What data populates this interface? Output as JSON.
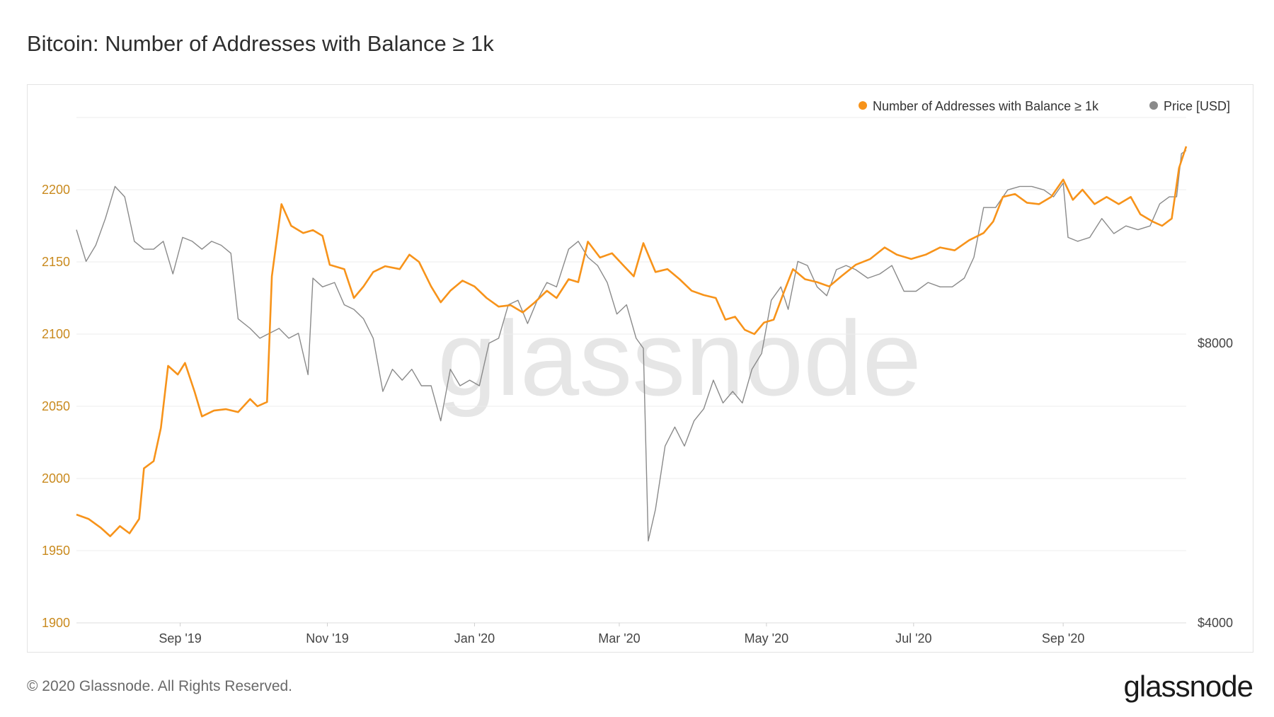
{
  "title": "Bitcoin: Number of Addresses with Balance ≥ 1k",
  "footer": "© 2020 Glassnode. All Rights Reserved.",
  "brand": "glassnode",
  "watermark": "glassnode",
  "colors": {
    "addresses": "#f7931a",
    "price": "#8a8a8a",
    "grid": "#ececec",
    "left_tick": "#c98a1e",
    "watermark": "#e6e6e6"
  },
  "chart_data": {
    "type": "line",
    "title": "Bitcoin: Number of Addresses with Balance ≥ 1k",
    "legend": {
      "placement": "top-right",
      "items": [
        "Number of Addresses with Balance ≥ 1k",
        "Price [USD]"
      ]
    },
    "grid": true,
    "x_range": [
      "2019-07-20",
      "2020-10-22"
    ],
    "x_ticks": [
      {
        "date": "2019-09-01",
        "label": "Sep '19"
      },
      {
        "date": "2019-11-01",
        "label": "Nov '19"
      },
      {
        "date": "2020-01-01",
        "label": "Jan '20"
      },
      {
        "date": "2020-03-01",
        "label": "Mar '20"
      },
      {
        "date": "2020-05-01",
        "label": "May '20"
      },
      {
        "date": "2020-07-01",
        "label": "Jul '20"
      },
      {
        "date": "2020-09-01",
        "label": "Sep '20"
      }
    ],
    "y_left": {
      "ylim": [
        1900,
        2250
      ],
      "ticks": [
        1900,
        1950,
        2000,
        2050,
        2100,
        2150,
        2200
      ]
    },
    "y_right": {
      "scale": "log",
      "ylim": [
        4000,
        14000
      ],
      "ticks": [
        4000,
        8000
      ],
      "tick_labels": [
        "$4000",
        "$8000"
      ]
    },
    "series": [
      {
        "name": "Number of Addresses with Balance ≥ 1k",
        "axis": "left",
        "points": [
          [
            "2019-07-20",
            1975
          ],
          [
            "2019-07-25",
            1972
          ],
          [
            "2019-07-30",
            1966
          ],
          [
            "2019-08-03",
            1960
          ],
          [
            "2019-08-07",
            1967
          ],
          [
            "2019-08-11",
            1962
          ],
          [
            "2019-08-15",
            1972
          ],
          [
            "2019-08-17",
            2007
          ],
          [
            "2019-08-21",
            2012
          ],
          [
            "2019-08-24",
            2035
          ],
          [
            "2019-08-27",
            2078
          ],
          [
            "2019-08-31",
            2072
          ],
          [
            "2019-09-03",
            2080
          ],
          [
            "2019-09-07",
            2060
          ],
          [
            "2019-09-10",
            2043
          ],
          [
            "2019-09-15",
            2047
          ],
          [
            "2019-09-20",
            2048
          ],
          [
            "2019-09-25",
            2046
          ],
          [
            "2019-09-30",
            2055
          ],
          [
            "2019-10-03",
            2050
          ],
          [
            "2019-10-07",
            2053
          ],
          [
            "2019-10-09",
            2140
          ],
          [
            "2019-10-13",
            2190
          ],
          [
            "2019-10-17",
            2175
          ],
          [
            "2019-10-22",
            2170
          ],
          [
            "2019-10-26",
            2172
          ],
          [
            "2019-10-30",
            2168
          ],
          [
            "2019-11-02",
            2148
          ],
          [
            "2019-11-08",
            2145
          ],
          [
            "2019-11-12",
            2125
          ],
          [
            "2019-11-16",
            2133
          ],
          [
            "2019-11-20",
            2143
          ],
          [
            "2019-11-25",
            2147
          ],
          [
            "2019-12-01",
            2145
          ],
          [
            "2019-12-05",
            2155
          ],
          [
            "2019-12-09",
            2150
          ],
          [
            "2019-12-14",
            2133
          ],
          [
            "2019-12-18",
            2122
          ],
          [
            "2019-12-22",
            2130
          ],
          [
            "2019-12-27",
            2137
          ],
          [
            "2020-01-01",
            2133
          ],
          [
            "2020-01-06",
            2125
          ],
          [
            "2020-01-11",
            2119
          ],
          [
            "2020-01-16",
            2120
          ],
          [
            "2020-01-21",
            2115
          ],
          [
            "2020-01-26",
            2122
          ],
          [
            "2020-01-31",
            2130
          ],
          [
            "2020-02-04",
            2125
          ],
          [
            "2020-02-09",
            2138
          ],
          [
            "2020-02-13",
            2136
          ],
          [
            "2020-02-17",
            2164
          ],
          [
            "2020-02-22",
            2153
          ],
          [
            "2020-02-27",
            2156
          ],
          [
            "2020-03-03",
            2147
          ],
          [
            "2020-03-07",
            2140
          ],
          [
            "2020-03-11",
            2163
          ],
          [
            "2020-03-16",
            2143
          ],
          [
            "2020-03-21",
            2145
          ],
          [
            "2020-03-26",
            2138
          ],
          [
            "2020-03-31",
            2130
          ],
          [
            "2020-04-05",
            2127
          ],
          [
            "2020-04-10",
            2125
          ],
          [
            "2020-04-14",
            2110
          ],
          [
            "2020-04-18",
            2112
          ],
          [
            "2020-04-22",
            2103
          ],
          [
            "2020-04-26",
            2100
          ],
          [
            "2020-04-30",
            2108
          ],
          [
            "2020-05-04",
            2110
          ],
          [
            "2020-05-08",
            2128
          ],
          [
            "2020-05-12",
            2145
          ],
          [
            "2020-05-17",
            2138
          ],
          [
            "2020-05-22",
            2136
          ],
          [
            "2020-05-27",
            2133
          ],
          [
            "2020-06-01",
            2140
          ],
          [
            "2020-06-07",
            2148
          ],
          [
            "2020-06-13",
            2152
          ],
          [
            "2020-06-19",
            2160
          ],
          [
            "2020-06-24",
            2155
          ],
          [
            "2020-06-30",
            2152
          ],
          [
            "2020-07-06",
            2155
          ],
          [
            "2020-07-12",
            2160
          ],
          [
            "2020-07-18",
            2158
          ],
          [
            "2020-07-24",
            2165
          ],
          [
            "2020-07-30",
            2170
          ],
          [
            "2020-08-03",
            2178
          ],
          [
            "2020-08-07",
            2195
          ],
          [
            "2020-08-12",
            2197
          ],
          [
            "2020-08-17",
            2191
          ],
          [
            "2020-08-22",
            2190
          ],
          [
            "2020-08-27",
            2195
          ],
          [
            "2020-09-01",
            2207
          ],
          [
            "2020-09-05",
            2193
          ],
          [
            "2020-09-09",
            2200
          ],
          [
            "2020-09-14",
            2190
          ],
          [
            "2020-09-19",
            2195
          ],
          [
            "2020-09-24",
            2190
          ],
          [
            "2020-09-29",
            2195
          ],
          [
            "2020-10-03",
            2183
          ],
          [
            "2020-10-08",
            2178
          ],
          [
            "2020-10-12",
            2175
          ],
          [
            "2020-10-16",
            2180
          ],
          [
            "2020-10-19",
            2215
          ],
          [
            "2020-10-22",
            2230
          ]
        ]
      },
      {
        "name": "Price [USD]",
        "axis": "right",
        "points": [
          [
            "2019-07-20",
            10600
          ],
          [
            "2019-07-24",
            9800
          ],
          [
            "2019-07-28",
            10200
          ],
          [
            "2019-08-01",
            10900
          ],
          [
            "2019-08-05",
            11800
          ],
          [
            "2019-08-09",
            11500
          ],
          [
            "2019-08-13",
            10300
          ],
          [
            "2019-08-17",
            10100
          ],
          [
            "2019-08-21",
            10100
          ],
          [
            "2019-08-25",
            10300
          ],
          [
            "2019-08-29",
            9500
          ],
          [
            "2019-09-02",
            10400
          ],
          [
            "2019-09-06",
            10300
          ],
          [
            "2019-09-10",
            10100
          ],
          [
            "2019-09-14",
            10300
          ],
          [
            "2019-09-18",
            10200
          ],
          [
            "2019-09-22",
            10000
          ],
          [
            "2019-09-25",
            8500
          ],
          [
            "2019-09-30",
            8300
          ],
          [
            "2019-10-04",
            8100
          ],
          [
            "2019-10-08",
            8200
          ],
          [
            "2019-10-12",
            8300
          ],
          [
            "2019-10-16",
            8100
          ],
          [
            "2019-10-20",
            8200
          ],
          [
            "2019-10-24",
            7400
          ],
          [
            "2019-10-26",
            9400
          ],
          [
            "2019-10-30",
            9200
          ],
          [
            "2019-11-04",
            9300
          ],
          [
            "2019-11-08",
            8800
          ],
          [
            "2019-11-12",
            8700
          ],
          [
            "2019-11-16",
            8500
          ],
          [
            "2019-11-20",
            8100
          ],
          [
            "2019-11-24",
            7100
          ],
          [
            "2019-11-28",
            7500
          ],
          [
            "2019-12-02",
            7300
          ],
          [
            "2019-12-06",
            7500
          ],
          [
            "2019-12-10",
            7200
          ],
          [
            "2019-12-14",
            7200
          ],
          [
            "2019-12-18",
            6600
          ],
          [
            "2019-12-22",
            7500
          ],
          [
            "2019-12-26",
            7200
          ],
          [
            "2019-12-30",
            7300
          ],
          [
            "2020-01-03",
            7200
          ],
          [
            "2020-01-07",
            8000
          ],
          [
            "2020-01-11",
            8100
          ],
          [
            "2020-01-15",
            8800
          ],
          [
            "2020-01-19",
            8900
          ],
          [
            "2020-01-23",
            8400
          ],
          [
            "2020-01-27",
            8900
          ],
          [
            "2020-01-31",
            9300
          ],
          [
            "2020-02-04",
            9200
          ],
          [
            "2020-02-09",
            10100
          ],
          [
            "2020-02-13",
            10300
          ],
          [
            "2020-02-17",
            9900
          ],
          [
            "2020-02-21",
            9700
          ],
          [
            "2020-02-25",
            9300
          ],
          [
            "2020-02-29",
            8600
          ],
          [
            "2020-03-04",
            8800
          ],
          [
            "2020-03-08",
            8100
          ],
          [
            "2020-03-11",
            7900
          ],
          [
            "2020-03-13",
            4900
          ],
          [
            "2020-03-16",
            5300
          ],
          [
            "2020-03-20",
            6200
          ],
          [
            "2020-03-24",
            6500
          ],
          [
            "2020-03-28",
            6200
          ],
          [
            "2020-04-01",
            6600
          ],
          [
            "2020-04-05",
            6800
          ],
          [
            "2020-04-09",
            7300
          ],
          [
            "2020-04-13",
            6900
          ],
          [
            "2020-04-17",
            7100
          ],
          [
            "2020-04-21",
            6900
          ],
          [
            "2020-04-25",
            7500
          ],
          [
            "2020-04-29",
            7800
          ],
          [
            "2020-05-03",
            8900
          ],
          [
            "2020-05-07",
            9200
          ],
          [
            "2020-05-10",
            8700
          ],
          [
            "2020-05-14",
            9800
          ],
          [
            "2020-05-18",
            9700
          ],
          [
            "2020-05-22",
            9200
          ],
          [
            "2020-05-26",
            9000
          ],
          [
            "2020-05-30",
            9600
          ],
          [
            "2020-06-03",
            9700
          ],
          [
            "2020-06-07",
            9600
          ],
          [
            "2020-06-12",
            9400
          ],
          [
            "2020-06-17",
            9500
          ],
          [
            "2020-06-22",
            9700
          ],
          [
            "2020-06-27",
            9100
          ],
          [
            "2020-07-02",
            9100
          ],
          [
            "2020-07-07",
            9300
          ],
          [
            "2020-07-12",
            9200
          ],
          [
            "2020-07-17",
            9200
          ],
          [
            "2020-07-22",
            9400
          ],
          [
            "2020-07-26",
            9900
          ],
          [
            "2020-07-30",
            11200
          ],
          [
            "2020-08-04",
            11200
          ],
          [
            "2020-08-09",
            11700
          ],
          [
            "2020-08-14",
            11800
          ],
          [
            "2020-08-19",
            11800
          ],
          [
            "2020-08-24",
            11700
          ],
          [
            "2020-08-28",
            11500
          ],
          [
            "2020-09-01",
            11900
          ],
          [
            "2020-09-03",
            10400
          ],
          [
            "2020-09-07",
            10300
          ],
          [
            "2020-09-12",
            10400
          ],
          [
            "2020-09-17",
            10900
          ],
          [
            "2020-09-22",
            10500
          ],
          [
            "2020-09-27",
            10700
          ],
          [
            "2020-10-02",
            10600
          ],
          [
            "2020-10-07",
            10700
          ],
          [
            "2020-10-11",
            11300
          ],
          [
            "2020-10-15",
            11500
          ],
          [
            "2020-10-18",
            11500
          ],
          [
            "2020-10-20",
            12800
          ],
          [
            "2020-10-22",
            12900
          ]
        ]
      }
    ]
  }
}
